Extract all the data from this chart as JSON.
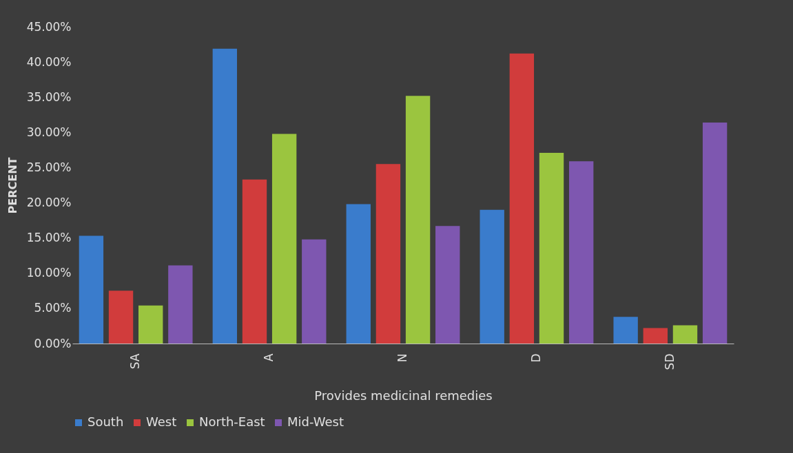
{
  "chart_data": {
    "type": "bar",
    "ylabel": "PERCENT",
    "xlabel": "Provides medicinal remedies",
    "categories": [
      "SA",
      "A",
      "N",
      "D",
      "SD"
    ],
    "series": [
      {
        "name": "South",
        "color": "#3a7ccc",
        "values": [
          15.3,
          41.9,
          19.8,
          19.0,
          3.8
        ]
      },
      {
        "name": "West",
        "color": "#d13c3c",
        "values": [
          7.5,
          23.3,
          25.5,
          41.2,
          2.2
        ]
      },
      {
        "name": "North-East",
        "color": "#9bc53f",
        "values": [
          5.4,
          29.8,
          35.2,
          27.1,
          2.6
        ]
      },
      {
        "name": "Mid-West",
        "color": "#7e57b0",
        "values": [
          11.1,
          14.8,
          16.7,
          25.9,
          31.4
        ]
      }
    ],
    "ylim": [
      0,
      45
    ],
    "yticks": [
      {
        "value": 0,
        "label": "0.00%"
      },
      {
        "value": 5,
        "label": "5.00%"
      },
      {
        "value": 10,
        "label": "10.00%"
      },
      {
        "value": 15,
        "label": "15.00%"
      },
      {
        "value": 20,
        "label": "20.00%"
      },
      {
        "value": 25,
        "label": "25.00%"
      },
      {
        "value": 30,
        "label": "30.00%"
      },
      {
        "value": 35,
        "label": "35.00%"
      },
      {
        "value": 40,
        "label": "40.00%"
      },
      {
        "value": 45,
        "label": "45.00%"
      }
    ],
    "grid": false,
    "legend": "bottom"
  }
}
